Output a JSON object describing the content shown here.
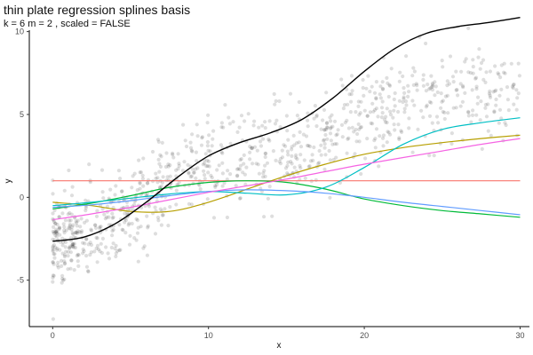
{
  "chart_data": {
    "type": "line",
    "title": "thin plate regression splines basis",
    "subtitle": "k = 6 m = 2 , scaled = FALSE",
    "xlabel": "x",
    "ylabel": "y",
    "xlim": [
      -1.5,
      30.6
    ],
    "ylim": [
      -7.8,
      11.8
    ],
    "x_ticks": [
      0,
      10,
      20,
      30
    ],
    "y_ticks": [
      -5,
      0,
      5,
      10
    ],
    "grid": false,
    "legend": "none",
    "series": [
      {
        "color": "#F8766D",
        "x": [
          0,
          5,
          10,
          15,
          20,
          25,
          30
        ],
        "y": [
          1,
          1,
          1,
          1,
          1,
          1,
          1
        ]
      },
      {
        "color": "#B79F00",
        "x": [
          0,
          2.5,
          5,
          7.5,
          10,
          12.5,
          15,
          17.5,
          20,
          22.5,
          25,
          27.5,
          30
        ],
        "y": [
          -0.3,
          -0.5,
          -0.85,
          -0.85,
          -0.3,
          0.5,
          1.3,
          2.0,
          2.6,
          3.0,
          3.3,
          3.55,
          3.75
        ]
      },
      {
        "color": "#00BA38",
        "x": [
          0,
          2.5,
          5,
          7.5,
          10,
          12.5,
          15,
          17.5,
          20,
          22.5,
          25,
          27.5,
          30
        ],
        "y": [
          -0.7,
          -0.35,
          0.1,
          0.6,
          0.9,
          1.0,
          0.9,
          0.5,
          -0.1,
          -0.5,
          -0.8,
          -1.0,
          -1.2
        ]
      },
      {
        "color": "#00BFC4",
        "x": [
          0,
          2.5,
          5,
          7.5,
          10,
          12.5,
          15,
          17.5,
          20,
          22.5,
          25,
          27.5,
          30
        ],
        "y": [
          -0.5,
          -0.3,
          -0.05,
          0.2,
          0.35,
          0.25,
          0.15,
          0.6,
          1.8,
          3.2,
          4.1,
          4.5,
          4.8
        ]
      },
      {
        "color": "#619CFF",
        "x": [
          0,
          2.5,
          5,
          7.5,
          10,
          12.5,
          15,
          17.5,
          20,
          22.5,
          25,
          27.5,
          30
        ],
        "y": [
          -0.6,
          -0.45,
          -0.2,
          0.1,
          0.35,
          0.45,
          0.4,
          0.25,
          0.0,
          -0.3,
          -0.55,
          -0.8,
          -1.05
        ]
      },
      {
        "color": "#F564E3",
        "x": [
          0,
          2.5,
          5,
          7.5,
          10,
          12.5,
          15,
          17.5,
          20,
          22.5,
          25,
          27.5,
          30
        ],
        "y": [
          -1.35,
          -1.0,
          -0.6,
          -0.15,
          0.3,
          0.7,
          1.1,
          1.55,
          2.0,
          2.4,
          2.8,
          3.2,
          3.55
        ]
      },
      {
        "color": "#000000",
        "x": [
          0,
          2,
          4,
          6,
          8,
          10,
          12,
          14,
          16,
          18,
          20,
          22,
          24,
          26,
          28,
          30
        ],
        "y": [
          -2.65,
          -2.4,
          -1.6,
          -0.3,
          1.2,
          2.5,
          3.3,
          3.9,
          4.7,
          6.0,
          7.6,
          9.0,
          9.9,
          10.3,
          10.55,
          10.85
        ]
      }
    ],
    "points": {
      "color": "#000000",
      "opacity": 0.13,
      "n": 1000,
      "x_range": [
        0,
        30
      ]
    }
  }
}
